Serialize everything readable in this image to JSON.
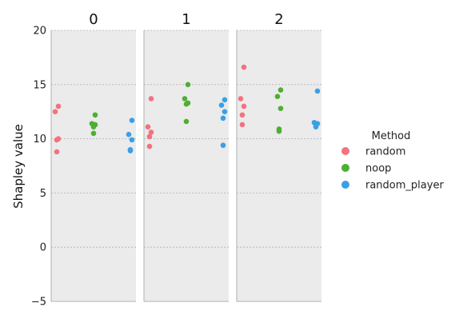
{
  "chart_data": {
    "type": "scatter",
    "kind": "faceted strip plot",
    "ylabel": "Shapley value",
    "ylim": [
      -5,
      20
    ],
    "yticks": [
      -5,
      0,
      5,
      10,
      15,
      20
    ],
    "ytick_labels": [
      "−5",
      "0",
      "5",
      "10",
      "15",
      "20"
    ],
    "grid": true,
    "legend_position": "right",
    "legend": {
      "title": "Method",
      "entries": [
        {
          "name": "random",
          "color": "#f2727f"
        },
        {
          "name": "noop",
          "color": "#4daf33"
        },
        {
          "name": "random_player",
          "color": "#3aa0e6"
        }
      ]
    },
    "panels": [
      {
        "title": "0",
        "series": [
          {
            "name": "random",
            "values": [
              13.0,
              12.5,
              10.0,
              9.9,
              8.8
            ]
          },
          {
            "name": "noop",
            "values": [
              12.2,
              11.4,
              11.3,
              11.1,
              10.5
            ]
          },
          {
            "name": "random_player",
            "values": [
              11.7,
              10.4,
              9.9,
              9.0,
              8.9
            ]
          }
        ]
      },
      {
        "title": "1",
        "series": [
          {
            "name": "random",
            "values": [
              13.7,
              11.1,
              10.6,
              10.2,
              9.3
            ]
          },
          {
            "name": "noop",
            "values": [
              15.0,
              13.7,
              13.3,
              13.2,
              11.6
            ]
          },
          {
            "name": "random_player",
            "values": [
              13.6,
              13.1,
              12.5,
              11.9,
              9.4
            ]
          }
        ]
      },
      {
        "title": "2",
        "series": [
          {
            "name": "random",
            "values": [
              16.6,
              13.7,
              13.0,
              12.2,
              11.3
            ]
          },
          {
            "name": "noop",
            "values": [
              14.5,
              13.9,
              12.8,
              10.9,
              10.7
            ]
          },
          {
            "name": "random_player",
            "values": [
              14.4,
              11.5,
              11.4,
              11.2,
              11.1
            ]
          }
        ]
      }
    ]
  }
}
